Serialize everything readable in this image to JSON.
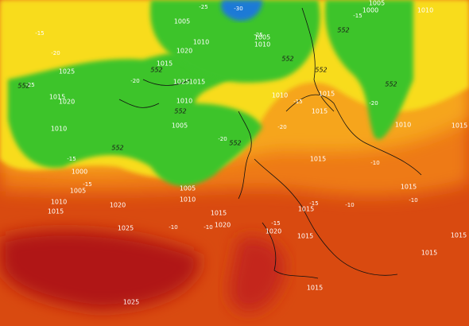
{
  "isobar_labels": [
    1005,
    1010,
    1020,
    1015,
    1025,
    1015,
    1025,
    1015,
    1020,
    1010,
    1010,
    1005,
    1000,
    1005,
    1010,
    1015,
    1005,
    1010,
    1020,
    1015,
    1025,
    1020,
    1020,
    1015,
    1015,
    1015,
    1025,
    1005,
    1010,
    1000,
    1005,
    1010,
    1015,
    1015,
    1010,
    1010,
    1015,
    1015,
    1015,
    1015,
    1015
  ],
  "height_labels": [
    552,
    552,
    552,
    552,
    552,
    552,
    552,
    552,
    552
  ],
  "temperature_labels": [
    -15,
    -20,
    -25,
    -20,
    -25,
    -30,
    -25,
    -20,
    -15,
    -20,
    -15,
    -10,
    -10,
    -15,
    -15,
    -10,
    -10,
    -10,
    -15,
    -20,
    -15
  ]
}
